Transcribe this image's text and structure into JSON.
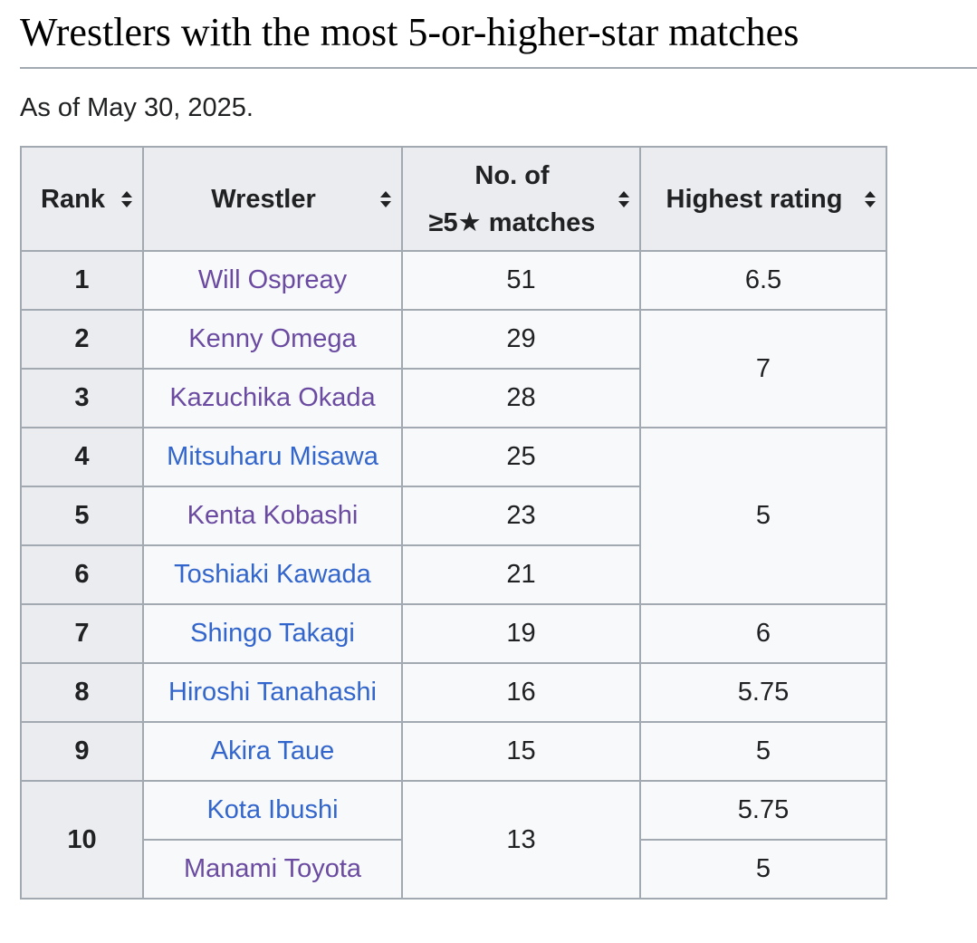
{
  "heading": "Wrestlers with the most 5-or-higher-star matches",
  "as_of": "As of May 30, 2025.",
  "colors": {
    "link": "#3366cc",
    "visited_link": "#6b4ba1",
    "header_bg": "#eaecf0",
    "cell_bg": "#f8f9fa",
    "border": "#a2a9b1"
  },
  "table": {
    "columns": [
      {
        "label": "Rank",
        "icon": "sort-icon"
      },
      {
        "label": "Wrestler",
        "icon": "sort-icon"
      },
      {
        "label_line1": "No. of",
        "label_line2": "≥5★ matches",
        "icon": "sort-icon"
      },
      {
        "label": "Highest rating",
        "icon": "sort-icon"
      }
    ],
    "rows": [
      {
        "rank": "1",
        "wrestler": "Will Ospreay",
        "matches": "51",
        "rating": "6.5",
        "visited": true
      },
      {
        "rank": "2",
        "wrestler": "Kenny Omega",
        "matches": "29",
        "rating": "7",
        "visited": true
      },
      {
        "rank": "3",
        "wrestler": "Kazuchika Okada",
        "matches": "28",
        "visited": true
      },
      {
        "rank": "4",
        "wrestler": "Mitsuharu Misawa",
        "matches": "25",
        "rating": "5",
        "visited": false
      },
      {
        "rank": "5",
        "wrestler": "Kenta Kobashi",
        "matches": "23",
        "visited": true
      },
      {
        "rank": "6",
        "wrestler": "Toshiaki Kawada",
        "matches": "21",
        "visited": false
      },
      {
        "rank": "7",
        "wrestler": "Shingo Takagi",
        "matches": "19",
        "rating": "6",
        "visited": false
      },
      {
        "rank": "8",
        "wrestler": "Hiroshi Tanahashi",
        "matches": "16",
        "rating": "5.75",
        "visited": false
      },
      {
        "rank": "9",
        "wrestler": "Akira Taue",
        "matches": "15",
        "rating": "5",
        "visited": false
      },
      {
        "rank": "10",
        "wrestler": "Kota Ibushi",
        "matches": "13",
        "rating": "5.75",
        "visited": false
      },
      {
        "wrestler": "Manami Toyota",
        "rating": "5",
        "visited": true
      }
    ]
  }
}
